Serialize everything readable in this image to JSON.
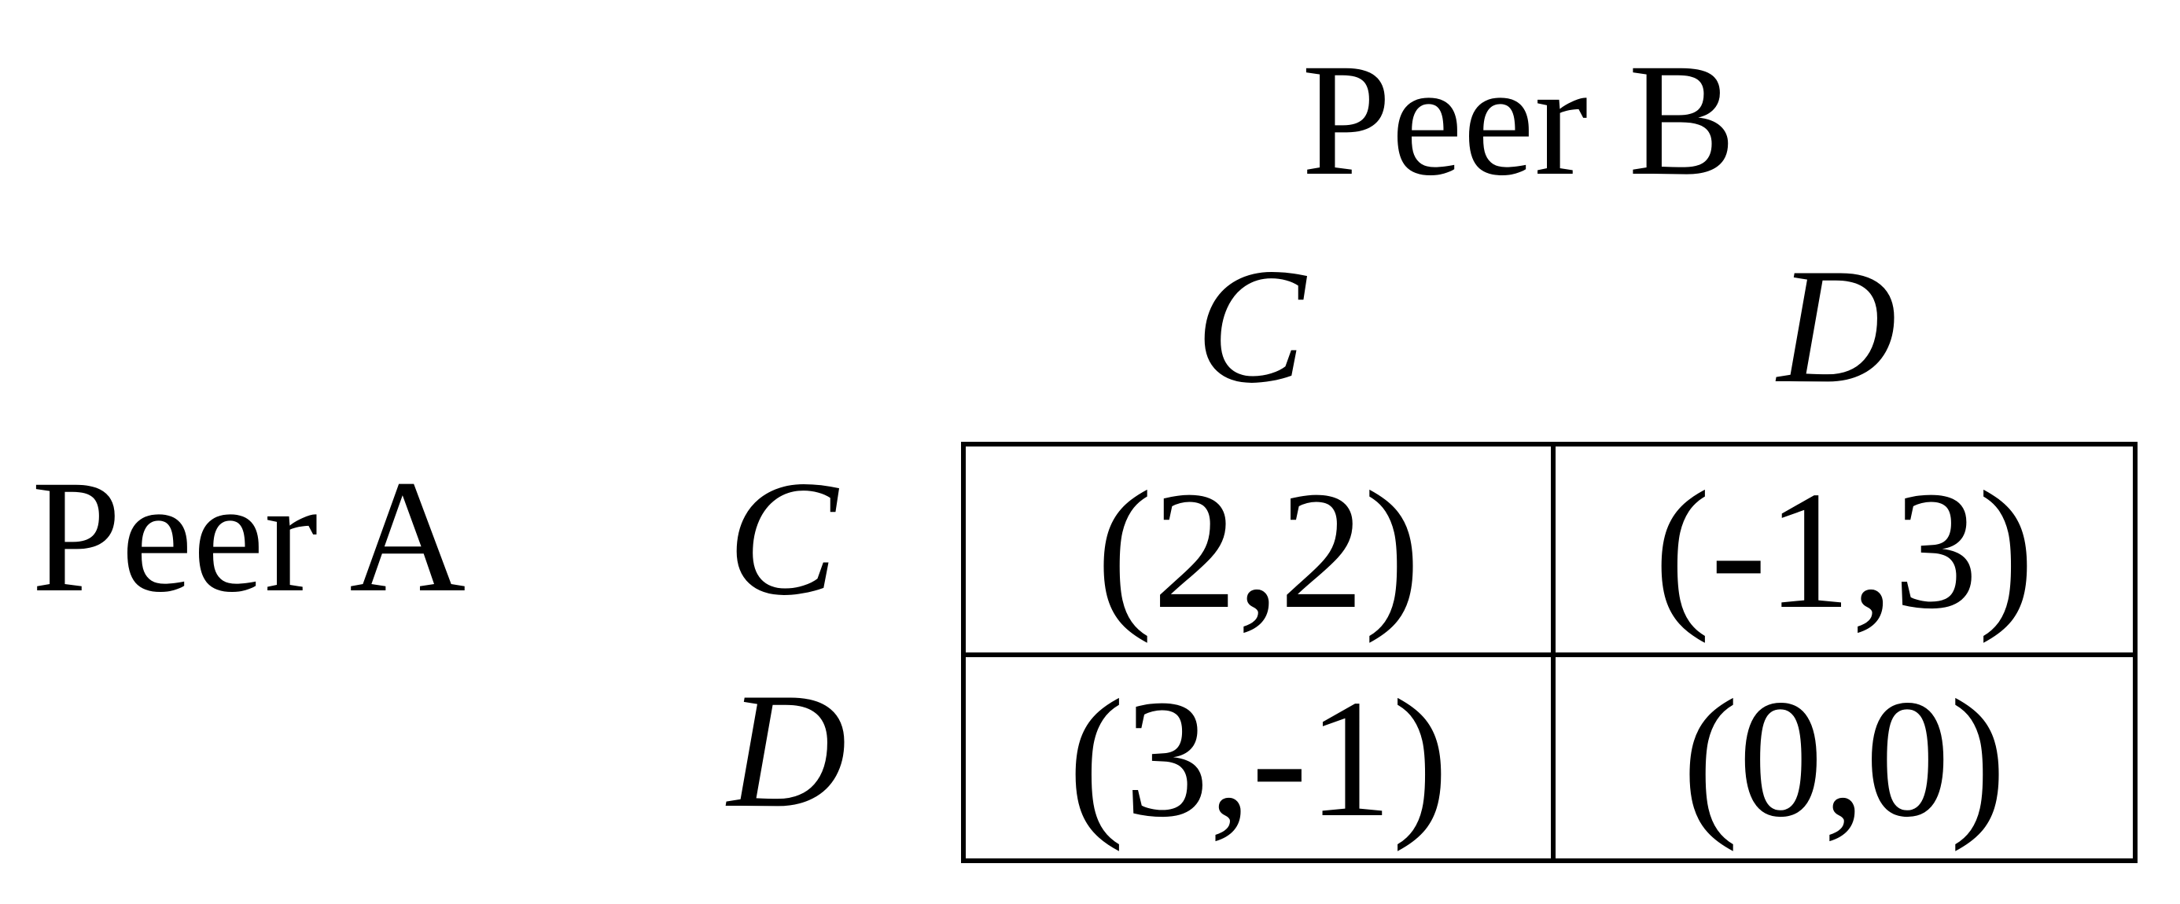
{
  "players": {
    "column_player": "Peer B",
    "row_player": "Peer A"
  },
  "strategies": {
    "columns": [
      "C",
      "D"
    ],
    "rows": [
      "C",
      "D"
    ]
  },
  "payoffs": [
    [
      "(2,2)",
      "(-1,3)"
    ],
    [
      "(3,-1)",
      "(0,0)"
    ]
  ]
}
